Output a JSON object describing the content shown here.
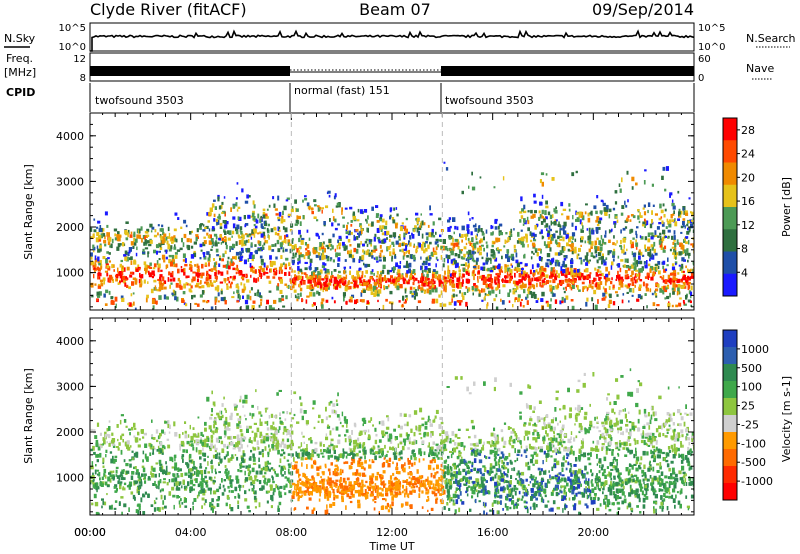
{
  "header": {
    "station": "Clyde River (fitACF)",
    "beam": "Beam 07",
    "date": "09/Sep/2014"
  },
  "strips": {
    "nsky_label": "N.Sky",
    "nsky_ticks": [
      "10^5",
      "10^0"
    ],
    "nsearch_label": "N.Search",
    "nsearch_ticks": [
      "10^5",
      "10^0"
    ],
    "freq_label": "Freq.",
    "freq_unit": "[MHz]",
    "freq_ticks": [
      "12",
      "8"
    ],
    "nave_label": "Nave",
    "nave_ticks": [
      "60",
      "0"
    ],
    "cpid_label": "CPID",
    "cpid_segments": [
      {
        "label": "twofsound 3503",
        "start_hour": 0,
        "end_hour": 8
      },
      {
        "label": "normal (fast) 151",
        "start_hour": 8,
        "end_hour": 14
      },
      {
        "label": "twofsound 3503",
        "start_hour": 14,
        "end_hour": 24
      }
    ]
  },
  "colors": {
    "power_scale": [
      "#1a1aff",
      "#1f4fa8",
      "#2f6f3f",
      "#4c9a55",
      "#e6c21a",
      "#f08a00",
      "#ff4a00",
      "#ff0000"
    ],
    "velocity_scale": [
      "#ff0000",
      "#ff2a00",
      "#ff6a00",
      "#ff9a00",
      "#cfcfcf",
      "#8ec63f",
      "#3fa84a",
      "#2f8a50",
      "#2d5fb0",
      "#1f3fc0"
    ]
  },
  "chart_data": [
    {
      "type": "heatmap",
      "name": "Power",
      "ylabel": "Slant Range [km]",
      "xlabel": "",
      "xlim": [
        "00:00",
        "24:00"
      ],
      "ylim": [
        180,
        4500
      ],
      "yticks": [
        1000,
        2000,
        3000,
        4000
      ],
      "colorbar_label": "Power [dB]",
      "colorbar_ticks": [
        "4",
        "8",
        "12",
        "16",
        "20",
        "24",
        "28"
      ],
      "colorbar_range": [
        0,
        30
      ],
      "mode_boundaries_hours": [
        8,
        14
      ]
    },
    {
      "type": "heatmap",
      "name": "Velocity",
      "ylabel": "Slant Range [km]",
      "xlabel": "Time UT",
      "xticks": [
        "00:00",
        "04:00",
        "08:00",
        "12:00",
        "16:00",
        "20:00",
        "00:00"
      ],
      "xlim": [
        "00:00",
        "24:00"
      ],
      "ylim": [
        180,
        4500
      ],
      "yticks": [
        1000,
        2000,
        3000,
        4000
      ],
      "colorbar_label": "Velocity [m s-1]",
      "colorbar_ticks": [
        "1000",
        "500",
        "100",
        "25",
        "-25",
        "-100",
        "-500",
        "-1000"
      ],
      "colorbar_range": [
        -1000,
        1000
      ],
      "mode_boundaries_hours": [
        8,
        14
      ]
    }
  ]
}
